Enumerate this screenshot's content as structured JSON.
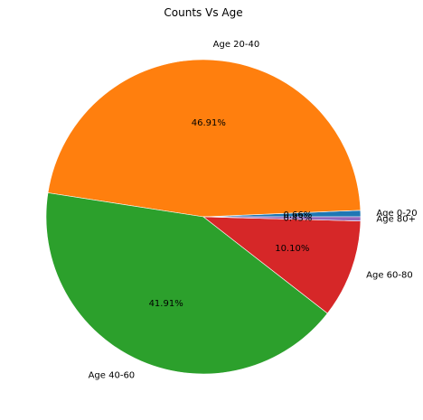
{
  "chart_data": {
    "type": "pie",
    "title": "Counts Vs Age",
    "categories": [
      "Age 0-20",
      "Age 20-40",
      "Age 40-60",
      "Age 60-80",
      "Age 80+"
    ],
    "values": [
      0.66,
      46.91,
      41.91,
      10.1,
      0.43
    ],
    "percent_labels": [
      "0.66%",
      "46.91%",
      "41.91%",
      "10.10%",
      "0.43%"
    ],
    "colors": [
      "#1f77b4",
      "#ff7f0e",
      "#2ca02c",
      "#d62728",
      "#9467bd"
    ],
    "start_angle_deg": 0,
    "direction": "counterclockwise",
    "legend": "none"
  }
}
